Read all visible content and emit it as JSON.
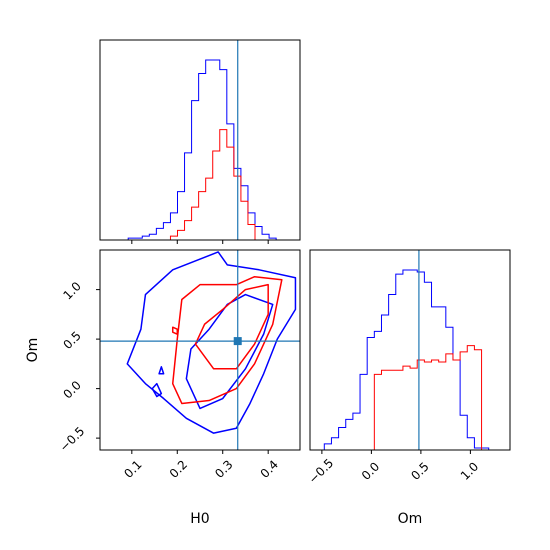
{
  "chart_data": {
    "type": "corner",
    "parameters": [
      "H0",
      "Om"
    ],
    "truth": {
      "H0": 0.333,
      "Om": 0.48
    },
    "colors": {
      "blue": "#0000ff",
      "red": "#ff0000",
      "truth": "#1f77b4",
      "axes": "#000000"
    },
    "panels": [
      {
        "name": "H0 marginal",
        "type": "histogram",
        "xlim": [
          0.03,
          0.47
        ],
        "x_ticks": [
          0.1,
          0.2,
          0.3,
          0.4
        ],
        "bin_width": 0.0155,
        "series": [
          {
            "name": "blue",
            "x_start": 0.03,
            "values": [
              0,
              0,
              0,
              0,
              0.01,
              0.01,
              0.02,
              0.03,
              0.06,
              0.09,
              0.14,
              0.25,
              0.45,
              0.72,
              0.86,
              0.93,
              0.93,
              0.88,
              0.6,
              0.37,
              0.28,
              0.14,
              0.07,
              0.03,
              0.01,
              0,
              0,
              0,
              0
            ]
          },
          {
            "name": "red",
            "x_start": 0.03,
            "values": [
              0,
              0,
              0,
              0,
              0,
              0,
              0,
              0,
              0,
              0,
              0.02,
              0.05,
              0.1,
              0.17,
              0.25,
              0.32,
              0.46,
              0.57,
              0.48,
              0.33,
              0.2,
              0.08,
              0,
              0,
              0,
              0,
              0,
              0,
              0
            ]
          }
        ]
      },
      {
        "name": "joint H0 Om",
        "type": "contour",
        "xlabel": "H0",
        "ylabel": "Om",
        "xlim": [
          0.03,
          0.47
        ],
        "ylim": [
          -0.62,
          1.4
        ],
        "x_ticks": [
          0.1,
          0.2,
          0.3,
          0.4
        ],
        "y_ticks": [
          -0.5,
          0.0,
          0.5,
          1.0
        ],
        "contours": [
          {
            "name": "blue-outer",
            "color": "blue",
            "points": [
              [
                0.09,
                0.25
              ],
              [
                0.13,
                0.05
              ],
              [
                0.17,
                -0.1
              ],
              [
                0.22,
                -0.3
              ],
              [
                0.28,
                -0.45
              ],
              [
                0.33,
                -0.4
              ],
              [
                0.36,
                -0.15
              ],
              [
                0.39,
                0.15
              ],
              [
                0.42,
                0.5
              ],
              [
                0.46,
                0.8
              ],
              [
                0.46,
                1.12
              ],
              [
                0.38,
                1.2
              ],
              [
                0.31,
                1.25
              ],
              [
                0.29,
                1.38
              ],
              [
                0.19,
                1.2
              ],
              [
                0.13,
                0.95
              ],
              [
                0.12,
                0.6
              ],
              [
                0.09,
                0.25
              ]
            ]
          },
          {
            "name": "blue-inner",
            "color": "blue",
            "points": [
              [
                0.22,
                0.1
              ],
              [
                0.25,
                -0.2
              ],
              [
                0.3,
                -0.1
              ],
              [
                0.35,
                0.2
              ],
              [
                0.39,
                0.55
              ],
              [
                0.41,
                0.85
              ],
              [
                0.35,
                0.95
              ],
              [
                0.31,
                0.85
              ],
              [
                0.27,
                0.6
              ],
              [
                0.23,
                0.4
              ],
              [
                0.22,
                0.1
              ]
            ]
          },
          {
            "name": "blue-island-1",
            "color": "blue",
            "points": [
              [
                0.145,
                0.0
              ],
              [
                0.155,
                0.05
              ],
              [
                0.165,
                -0.05
              ],
              [
                0.155,
                -0.08
              ],
              [
                0.145,
                0.0
              ]
            ]
          },
          {
            "name": "blue-island-2",
            "color": "blue",
            "points": [
              [
                0.16,
                0.15
              ],
              [
                0.165,
                0.22
              ],
              [
                0.17,
                0.15
              ],
              [
                0.16,
                0.15
              ]
            ]
          },
          {
            "name": "red-outer",
            "color": "red",
            "points": [
              [
                0.19,
                0.05
              ],
              [
                0.21,
                -0.15
              ],
              [
                0.27,
                -0.12
              ],
              [
                0.33,
                0.0
              ],
              [
                0.37,
                0.25
              ],
              [
                0.41,
                0.65
              ],
              [
                0.43,
                1.1
              ],
              [
                0.37,
                1.13
              ],
              [
                0.33,
                1.05
              ],
              [
                0.25,
                1.05
              ],
              [
                0.21,
                0.9
              ],
              [
                0.2,
                0.5
              ],
              [
                0.19,
                0.05
              ]
            ]
          },
          {
            "name": "red-inner",
            "color": "red",
            "points": [
              [
                0.24,
                0.45
              ],
              [
                0.28,
                0.2
              ],
              [
                0.33,
                0.2
              ],
              [
                0.37,
                0.45
              ],
              [
                0.4,
                0.75
              ],
              [
                0.4,
                1.05
              ],
              [
                0.35,
                1.0
              ],
              [
                0.3,
                0.8
              ],
              [
                0.26,
                0.65
              ],
              [
                0.24,
                0.45
              ]
            ]
          },
          {
            "name": "red-island",
            "color": "red",
            "points": [
              [
                0.19,
                0.62
              ],
              [
                0.2,
                0.6
              ],
              [
                0.2,
                0.55
              ],
              [
                0.19,
                0.57
              ],
              [
                0.19,
                0.62
              ]
            ]
          }
        ]
      },
      {
        "name": "Om marginal",
        "type": "histogram",
        "xlabel": "Om",
        "xlim": [
          -0.62,
          1.4
        ],
        "x_ticks": [
          -0.5,
          0.0,
          0.5,
          1.0
        ],
        "bin_width": 0.0722,
        "series": [
          {
            "name": "blue",
            "x_start": -0.62,
            "values": [
              0,
              0,
              0.03,
              0.06,
              0.11,
              0.15,
              0.18,
              0.37,
              0.55,
              0.58,
              0.66,
              0.76,
              0.86,
              0.88,
              0.88,
              0.87,
              0.82,
              0.7,
              0.7,
              0.6,
              0.44,
              0.17,
              0.06,
              0.01,
              0.01,
              0,
              0,
              0
            ]
          },
          {
            "name": "red",
            "x_start": -0.62,
            "values": [
              0,
              0,
              0,
              0,
              0,
              0,
              0,
              0,
              0,
              0.37,
              0.39,
              0.39,
              0.39,
              0.41,
              0.4,
              0.44,
              0.43,
              0.44,
              0.43,
              0.47,
              0.44,
              0.48,
              0.51,
              0.49,
              0,
              0,
              0,
              0
            ]
          }
        ]
      }
    ]
  },
  "labels": {
    "h0_axis": "H0",
    "om_axis": "Om",
    "h0_ticks": [
      "0.1",
      "0.2",
      "0.3",
      "0.4"
    ],
    "om_ticks": [
      "−0.5",
      "0.0",
      "0.5",
      "1.0"
    ]
  }
}
